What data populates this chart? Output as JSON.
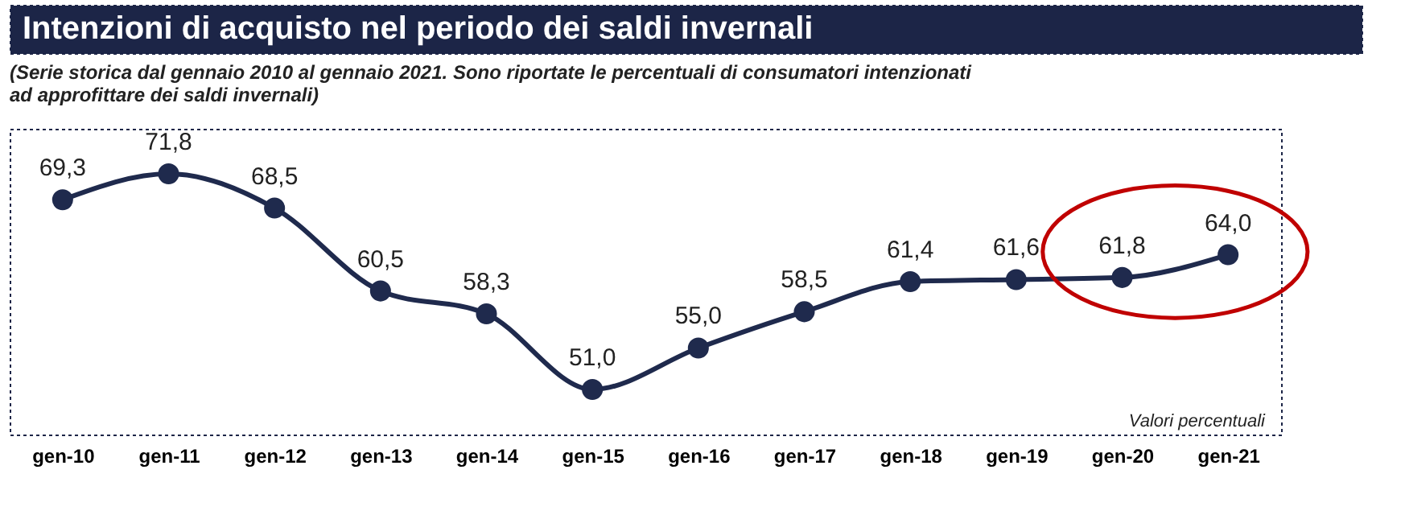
{
  "chart_data": {
    "type": "line",
    "title": "Intenzioni di acquisto nel periodo dei saldi invernali",
    "subtitle": [
      "(Serie storica dal gennaio 2010 al gennaio 2021. Sono riportate le percentuali di consumatori intenzionati",
      "ad approfittare dei saldi invernali)"
    ],
    "categories": [
      "gen-10",
      "gen-11",
      "gen-12",
      "gen-13",
      "gen-14",
      "gen-15",
      "gen-16",
      "gen-17",
      "gen-18",
      "gen-19",
      "gen-20",
      "gen-21"
    ],
    "values": [
      69.3,
      71.8,
      68.5,
      60.5,
      58.3,
      51.0,
      55.0,
      58.5,
      61.4,
      61.6,
      61.8,
      64.0
    ],
    "color": "#1f2a4d",
    "marker": "circle",
    "data_labels": true,
    "value_labels": [
      "69,3",
      "71,8",
      "68,5",
      "60,5",
      "58,3",
      "51,0",
      "55,0",
      "58,5",
      "61,4",
      "61,6",
      "61,8",
      "64,0"
    ],
    "annotations": [
      "Valori percentuali"
    ]
  }
}
